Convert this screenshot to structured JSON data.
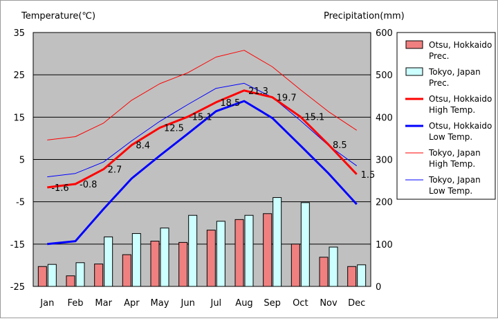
{
  "chart_data": {
    "type": "bar+line",
    "categories": [
      "Jan",
      "Feb",
      "Mar",
      "Apr",
      "May",
      "Jun",
      "Jul",
      "Aug",
      "Sep",
      "Oct",
      "Nov",
      "Dec"
    ],
    "left_axis": {
      "label": "Temperature(℃)",
      "min": -25,
      "max": 35,
      "ticks": [
        35,
        25,
        15,
        5,
        -5,
        -15,
        -25
      ]
    },
    "right_axis": {
      "label": "Precipitation(mm)",
      "min": 0,
      "max": 600,
      "ticks": [
        600,
        500,
        400,
        300,
        200,
        100,
        0
      ]
    },
    "grid": true,
    "legend_position": "right",
    "bar_series": [
      {
        "name": "Otsu, Hokkaido Prec.",
        "color": "#f08080",
        "axis": "right",
        "values": [
          47,
          25,
          53,
          75,
          107,
          104,
          133,
          158,
          172,
          100,
          69,
          47
        ]
      },
      {
        "name": "Tokyo, Japan Prec.",
        "color": "#ccffff",
        "axis": "right",
        "values": [
          52,
          56,
          117,
          125,
          138,
          168,
          154,
          168,
          210,
          198,
          93,
          51
        ]
      }
    ],
    "line_series": [
      {
        "name": "Otsu, Hokkaido High Temp.",
        "color": "#ff0000",
        "width": 3,
        "axis": "left",
        "values": [
          -1.6,
          -0.8,
          2.7,
          8.4,
          12.5,
          15.1,
          18.5,
          21.3,
          19.7,
          15.1,
          8.5,
          1.5
        ],
        "labels": [
          "-1.6",
          "-0.8",
          "2.7",
          "8.4",
          "12.5",
          "15.1",
          "18.5",
          "21.3",
          "19.7",
          "15.1",
          "8.5",
          "1.5"
        ]
      },
      {
        "name": "Otsu, Hokkaido Low Temp.",
        "color": "#0000ff",
        "width": 3,
        "axis": "left",
        "values": [
          -15,
          -14.3,
          -6.7,
          0.5,
          5.9,
          11.1,
          16.4,
          18.8,
          14.8,
          8.3,
          1.7,
          -5.6
        ]
      },
      {
        "name": "Tokyo, Japan High Temp.",
        "color": "#ff0000",
        "width": 1,
        "axis": "left",
        "values": [
          9.6,
          10.4,
          13.6,
          19.0,
          22.9,
          25.5,
          29.2,
          30.8,
          26.9,
          21.5,
          16.3,
          11.9
        ]
      },
      {
        "name": "Tokyo, Japan Low Temp.",
        "color": "#0000ff",
        "width": 1,
        "axis": "left",
        "values": [
          0.9,
          1.7,
          4.4,
          9.4,
          14.0,
          18.0,
          21.8,
          23.0,
          19.7,
          14.2,
          8.3,
          3.5
        ]
      }
    ],
    "legend": [
      {
        "line1": "Otsu, Hokkaido",
        "line2": "Prec.",
        "kind": "box",
        "color": "#f08080"
      },
      {
        "line1": "Tokyo, Japan",
        "line2": "Prec.",
        "kind": "box",
        "color": "#ccffff"
      },
      {
        "line1": "Otsu, Hokkaido",
        "line2": "High Temp.",
        "kind": "line",
        "color": "#ff0000",
        "width": 3
      },
      {
        "line1": "Otsu, Hokkaido",
        "line2": "Low Temp.",
        "kind": "line",
        "color": "#0000ff",
        "width": 3
      },
      {
        "line1": "Tokyo, Japan",
        "line2": "High Temp.",
        "kind": "line",
        "color": "#ff0000",
        "width": 1
      },
      {
        "line1": "Tokyo, Japan",
        "line2": "Low Temp.",
        "kind": "line",
        "color": "#0000ff",
        "width": 1
      }
    ],
    "plot_background": "#c0c0c0"
  }
}
